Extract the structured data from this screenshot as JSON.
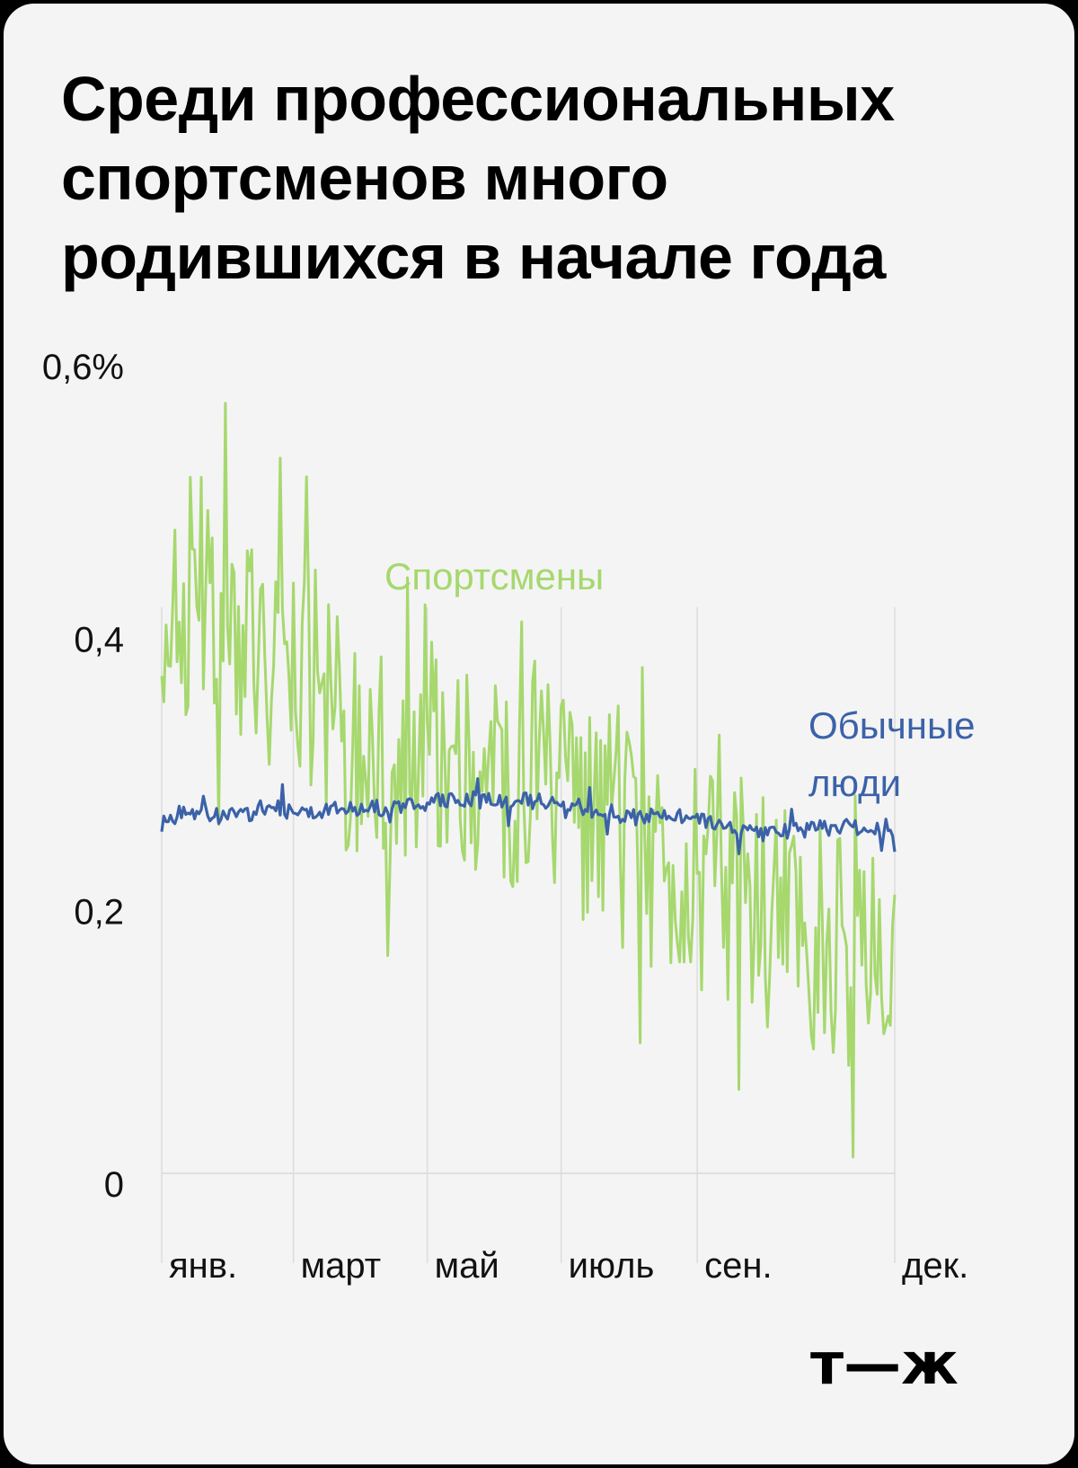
{
  "chart_data": {
    "type": "line",
    "title": "Среди профессиональных спортсменов много родившихся в начале года",
    "y_ticks": [
      "0,6%",
      "0,4",
      "0,2",
      "0"
    ],
    "y_tick_values": [
      0.6,
      0.4,
      0.2,
      0
    ],
    "ylim": [
      0,
      0.6
    ],
    "x_ticks": [
      "янв.",
      "март",
      "май",
      "июль",
      "сен.",
      "дек."
    ],
    "x_tick_days": [
      0,
      60,
      121,
      182,
      244,
      334
    ],
    "xlim": [
      0,
      334
    ],
    "grid": "vertical",
    "series": [
      {
        "name": "Спортсмены",
        "color": "#a6d86e",
        "x": [
          0,
          5,
          10,
          15,
          20,
          25,
          30,
          35,
          40,
          45,
          50,
          55,
          60,
          65,
          70,
          75,
          80,
          85,
          90,
          95,
          100,
          105,
          110,
          115,
          120,
          125,
          130,
          135,
          140,
          145,
          150,
          155,
          160,
          165,
          170,
          175,
          180,
          185,
          190,
          195,
          200,
          205,
          210,
          215,
          220,
          225,
          230,
          235,
          240,
          245,
          250,
          255,
          260,
          265,
          270,
          275,
          280,
          285,
          290,
          295,
          300,
          305,
          310,
          315,
          320,
          325,
          330,
          334
        ],
        "values": [
          0.38,
          0.44,
          0.4,
          0.46,
          0.42,
          0.4,
          0.43,
          0.38,
          0.4,
          0.41,
          0.34,
          0.37,
          0.35,
          0.37,
          0.36,
          0.33,
          0.35,
          0.31,
          0.32,
          0.33,
          0.3,
          0.31,
          0.3,
          0.32,
          0.3,
          0.31,
          0.29,
          0.28,
          0.29,
          0.27,
          0.29,
          0.28,
          0.27,
          0.27,
          0.26,
          0.28,
          0.26,
          0.27,
          0.26,
          0.25,
          0.26,
          0.25,
          0.24,
          0.25,
          0.23,
          0.24,
          0.23,
          0.22,
          0.23,
          0.22,
          0.21,
          0.22,
          0.2,
          0.21,
          0.2,
          0.19,
          0.2,
          0.19,
          0.18,
          0.17,
          0.18,
          0.16,
          0.17,
          0.16,
          0.15,
          0.16,
          0.15,
          0.14
        ],
        "label_lines": [
          "Спортсмены"
        ],
        "label_color": "#a6d86e"
      },
      {
        "name": "Обычные люди",
        "color": "#3b62a8",
        "x": [
          0,
          5,
          10,
          15,
          20,
          25,
          30,
          35,
          40,
          45,
          50,
          55,
          60,
          65,
          70,
          75,
          80,
          85,
          90,
          95,
          100,
          105,
          110,
          115,
          120,
          125,
          130,
          135,
          140,
          145,
          150,
          155,
          160,
          165,
          170,
          175,
          180,
          185,
          190,
          195,
          200,
          205,
          210,
          215,
          220,
          225,
          230,
          235,
          240,
          245,
          250,
          255,
          260,
          265,
          270,
          275,
          280,
          285,
          290,
          295,
          300,
          305,
          310,
          315,
          320,
          325,
          330,
          334
        ],
        "values": [
          0.25,
          0.262,
          0.265,
          0.263,
          0.264,
          0.262,
          0.264,
          0.266,
          0.263,
          0.268,
          0.27,
          0.266,
          0.267,
          0.268,
          0.266,
          0.267,
          0.268,
          0.269,
          0.267,
          0.27,
          0.268,
          0.271,
          0.268,
          0.272,
          0.27,
          0.273,
          0.272,
          0.274,
          0.275,
          0.274,
          0.276,
          0.274,
          0.275,
          0.274,
          0.273,
          0.272,
          0.271,
          0.269,
          0.27,
          0.268,
          0.266,
          0.265,
          0.262,
          0.261,
          0.263,
          0.262,
          0.264,
          0.262,
          0.26,
          0.258,
          0.259,
          0.255,
          0.253,
          0.252,
          0.25,
          0.249,
          0.251,
          0.25,
          0.252,
          0.253,
          0.254,
          0.252,
          0.255,
          0.254,
          0.253,
          0.254,
          0.252,
          0.24
        ],
        "label_lines": [
          "Обычные",
          "люди"
        ],
        "label_color": "#3b62a8"
      }
    ]
  },
  "logo": {
    "text": "т—ж"
  }
}
